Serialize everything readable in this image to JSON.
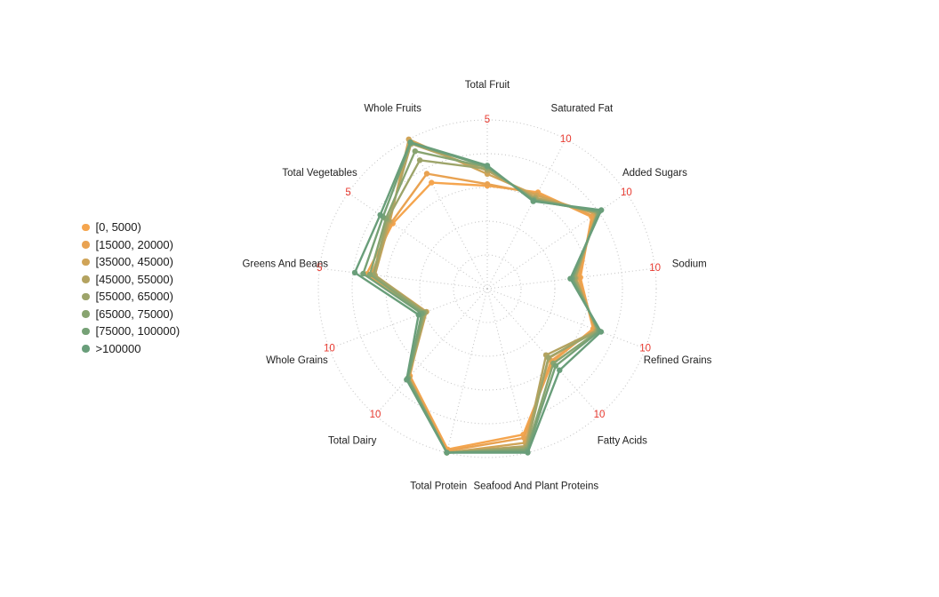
{
  "page": {
    "background": "#ffffff"
  },
  "chart_data": {
    "type": "radar",
    "title": "",
    "n_axes": 13,
    "rings": 5,
    "grid_style": "dotted",
    "grid_color": "#c6c6c6",
    "tick_color": "#e8392f",
    "axis_label_color": "#222222",
    "legend_position": "left",
    "axes": [
      {
        "label": "Total Fruit",
        "max": 5,
        "tick": "5"
      },
      {
        "label": "Saturated Fat",
        "max": 10,
        "tick": "10"
      },
      {
        "label": "Added Sugars",
        "max": 10,
        "tick": "10"
      },
      {
        "label": "Sodium",
        "max": 10,
        "tick": "10"
      },
      {
        "label": "Refined Grains",
        "max": 10,
        "tick": "10"
      },
      {
        "label": "Fatty Acids",
        "max": 10,
        "tick": "10"
      },
      {
        "label": "Seafood And Plant Proteins",
        "max": 5,
        "tick": null
      },
      {
        "label": "Total Protein",
        "max": 5,
        "tick": null
      },
      {
        "label": "Total Dairy",
        "max": 10,
        "tick": "10"
      },
      {
        "label": "Whole Grains",
        "max": 10,
        "tick": "10"
      },
      {
        "label": "Greens And Beans",
        "max": 5,
        "tick": "5"
      },
      {
        "label": "Total Vegetables",
        "max": 5,
        "tick": "5"
      },
      {
        "label": "Whole Fruits",
        "max": 5,
        "tick": null
      }
    ],
    "series": [
      {
        "name": "[0, 5000)",
        "color": "#F5A54E",
        "values": [
          3.05,
          6.45,
          7.5,
          5.55,
          6.7,
          5.8,
          4.45,
          4.9,
          6.9,
          4.0,
          3.6,
          3.4,
          3.55
        ]
      },
      {
        "name": "[15000, 20000)",
        "color": "#E9A251",
        "values": [
          3.1,
          6.35,
          7.6,
          5.45,
          6.8,
          5.7,
          4.55,
          4.95,
          6.95,
          3.95,
          3.45,
          3.45,
          3.85
        ]
      },
      {
        "name": "[35000, 45000)",
        "color": "#D0A458",
        "values": [
          3.4,
          6.25,
          7.8,
          5.3,
          6.9,
          5.5,
          4.7,
          5.0,
          7.0,
          3.85,
          3.35,
          3.5,
          5.0
        ]
      },
      {
        "name": "[45000, 55000)",
        "color": "#B4A360",
        "values": [
          3.5,
          6.1,
          7.9,
          5.25,
          6.95,
          5.25,
          4.8,
          5.0,
          7.05,
          3.9,
          3.35,
          3.55,
          4.85
        ]
      },
      {
        "name": "[55000, 65000)",
        "color": "#9DA46A",
        "values": [
          3.55,
          6.0,
          7.95,
          5.2,
          7.0,
          5.45,
          4.85,
          5.0,
          7.05,
          3.95,
          3.4,
          3.6,
          4.3
        ]
      },
      {
        "name": "[65000, 75000)",
        "color": "#88A470",
        "values": [
          3.6,
          5.95,
          8.0,
          5.1,
          7.05,
          5.9,
          4.9,
          5.0,
          7.1,
          4.05,
          3.5,
          3.65,
          4.6
        ]
      },
      {
        "name": "[75000, 100000)",
        "color": "#76A176",
        "values": [
          3.62,
          5.9,
          8.05,
          5.05,
          7.1,
          6.1,
          4.95,
          5.0,
          7.1,
          4.15,
          3.7,
          3.75,
          4.87
        ]
      },
      {
        "name": ">100000",
        "color": "#699E7A",
        "values": [
          3.65,
          5.85,
          8.2,
          4.95,
          7.2,
          6.45,
          5.0,
          5.0,
          7.2,
          4.35,
          3.95,
          3.85,
          4.9
        ]
      }
    ]
  }
}
